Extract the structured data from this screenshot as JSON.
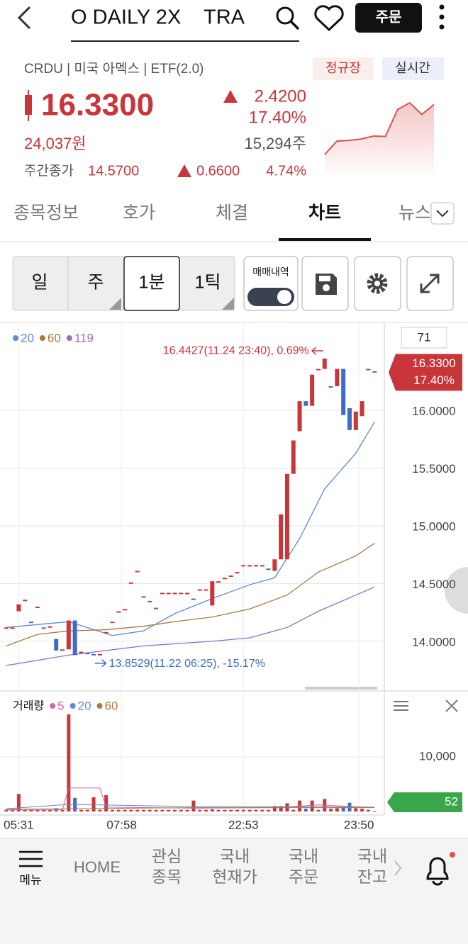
{
  "header": {
    "title": "O DAILY 2X    TRA",
    "order_button": "주문"
  },
  "quote": {
    "info": "CRDU | 미국 아멕스 | ETF(2.0)",
    "badges": [
      "정규장",
      "실시간"
    ],
    "price": "16.3300",
    "change": "2.4200",
    "change_rate": "17.40%",
    "price_krw": "24,037원",
    "volume": "15,294주",
    "day_close_label": "주간종가",
    "day_close": "14.5700",
    "day_change": "0.6600",
    "day_change_rate": "4.74%"
  },
  "tabs": {
    "items": [
      "종목정보",
      "호가",
      "체결",
      "차트",
      "뉴스"
    ],
    "active": 3
  },
  "toolbar": {
    "periods": [
      "일",
      "주",
      "1분",
      "1틱"
    ],
    "selected": 2,
    "trade_history": "매매내역"
  },
  "chart_data": [
    {
      "type": "area",
      "color": "#d9534f",
      "values": [
        14.9,
        15.3,
        15.32,
        15.36,
        15.45,
        15.44,
        16.25,
        16.45,
        16.1,
        16.4
      ],
      "ylim": [
        14.6,
        16.6
      ]
    },
    {
      "type": "candlestick",
      "up_color": "#c8363a",
      "down_color": "#3d6cc7",
      "xlim": [
        -1,
        60
      ],
      "ylim": [
        13.6,
        16.75
      ],
      "yticks": [
        {
          "value": 14,
          "label": "14.0000"
        },
        {
          "value": 14.5,
          "label": "14.5000"
        },
        {
          "value": 15,
          "label": "15.0000"
        },
        {
          "value": 15.5,
          "label": "15.5000"
        },
        {
          "value": 16,
          "label": "16.0000"
        }
      ],
      "open": [
        14.12,
        14.12,
        14.26,
        14.36,
        14.17,
        14.3,
        14.12,
        14.13,
        14.02,
        13.93,
        13.93,
        14.18,
        13.91,
        13.9,
        13.89,
        13.89,
        14.08,
        14.17,
        14.26,
        14.28,
        14.51,
        14.61,
        14.39,
        14.35,
        14.29,
        14.42,
        14.42,
        14.42,
        14.42,
        14.42,
        14.37,
        14.45,
        14.45,
        14.31,
        14.52,
        14.55,
        14.57,
        14.6,
        14.66,
        14.66,
        14.66,
        14.66,
        14.63,
        14.61,
        14.71,
        14.71,
        15.45,
        15.82,
        16.08,
        16.04,
        16.36,
        16.36,
        16.21,
        16.21,
        16.36,
        16.02,
        15.83,
        15.95,
        16.36,
        16.34
      ],
      "close": [
        14.12,
        14.12,
        14.32,
        14.36,
        14.17,
        14.3,
        14.12,
        14.13,
        13.92,
        13.93,
        14.18,
        13.88,
        13.91,
        13.9,
        13.89,
        13.89,
        14.08,
        14.17,
        14.26,
        14.28,
        14.51,
        14.61,
        14.39,
        14.35,
        14.29,
        14.42,
        14.42,
        14.42,
        14.42,
        14.42,
        14.37,
        14.45,
        14.45,
        14.52,
        14.52,
        14.55,
        14.57,
        14.6,
        14.66,
        14.66,
        14.66,
        14.66,
        14.63,
        14.71,
        15.1,
        15.45,
        15.74,
        16.08,
        16.04,
        16.31,
        16.36,
        16.45,
        16.21,
        16.36,
        15.96,
        15.83,
        15.99,
        16.08,
        16.36,
        16.34
      ],
      "series": [
        {
          "name": "20",
          "color": "#5b8ad6",
          "x": [
            0,
            10,
            17,
            22,
            27,
            33,
            39,
            43,
            47,
            51,
            56,
            59
          ],
          "values": [
            14.12,
            14.17,
            14.05,
            14.09,
            14.24,
            14.37,
            14.49,
            14.55,
            14.89,
            15.32,
            15.63,
            15.9
          ]
        },
        {
          "name": "60",
          "color": "#a87a3c",
          "x": [
            0,
            5,
            10,
            16,
            22,
            27,
            33,
            39,
            45,
            50,
            56,
            59
          ],
          "values": [
            13.96,
            14.06,
            14.09,
            14.1,
            14.13,
            14.17,
            14.21,
            14.28,
            14.4,
            14.6,
            14.74,
            14.85
          ]
        },
        {
          "name": "119",
          "color": "#9a6bc9",
          "x": [
            0,
            10,
            22,
            33,
            39,
            45,
            50,
            56,
            59
          ],
          "values": [
            13.79,
            13.88,
            13.96,
            14.0,
            14.03,
            14.12,
            14.26,
            14.4,
            14.47
          ]
        }
      ],
      "annotations": [
        {
          "text": "16.4427(11.24 23:40), 0.69%",
          "x": 51,
          "value": 16.4427
        },
        {
          "text": "13.8529(11.22 06:25), -15.17%",
          "x": 11,
          "value": 13.8529
        }
      ],
      "box_label": "71",
      "last": {
        "value": 16.33,
        "label": "16.3300",
        "rate": "17.40%"
      }
    },
    {
      "type": "bar",
      "title": "거래량",
      "color": "#c8363a",
      "xlim": [
        -1,
        60
      ],
      "ylim": [
        0,
        20800
      ],
      "yticks": [
        {
          "value": 10000,
          "label": "10,000"
        }
      ],
      "xticks": [
        {
          "value": 2,
          "label": "05:31"
        },
        {
          "value": 18.5,
          "label": "07:58"
        },
        {
          "value": 38,
          "label": "22:53"
        },
        {
          "value": 56.5,
          "label": "23:50"
        }
      ],
      "values": [
        300,
        300,
        3200,
        300,
        300,
        300,
        300,
        300,
        600,
        300,
        17800,
        2500,
        300,
        300,
        2600,
        300,
        3000,
        300,
        300,
        300,
        300,
        300,
        300,
        300,
        300,
        300,
        300,
        300,
        300,
        300,
        2000,
        300,
        300,
        400,
        300,
        300,
        300,
        300,
        300,
        300,
        300,
        300,
        300,
        1000,
        1000,
        1500,
        300,
        2000,
        500,
        2000,
        300,
        2300,
        500,
        600,
        800,
        1600,
        600,
        500,
        300,
        52
      ],
      "series": [
        {
          "name": "5",
          "color": "#d6669a",
          "x": [
            0,
            9,
            10,
            15,
            16,
            30,
            43,
            50,
            59
          ],
          "values": [
            300,
            300,
            4300,
            4300,
            800,
            600,
            700,
            1200,
            700
          ]
        },
        {
          "name": "20",
          "color": "#5b8ad6",
          "x": [
            0,
            10,
            30,
            59
          ],
          "values": [
            500,
            1300,
            900,
            800
          ]
        },
        {
          "name": "60",
          "color": "#a87a3c",
          "x": [
            0,
            30,
            59
          ],
          "values": [
            400,
            700,
            700
          ]
        }
      ],
      "last": {
        "value": 52,
        "label": "52"
      }
    }
  ],
  "nav": {
    "menu": "메뉴",
    "items": [
      [
        "HOME"
      ],
      [
        "관심",
        "종목"
      ],
      [
        "국내",
        "현재가"
      ],
      [
        "국내",
        "주문"
      ],
      [
        "국내",
        "잔고"
      ]
    ]
  }
}
